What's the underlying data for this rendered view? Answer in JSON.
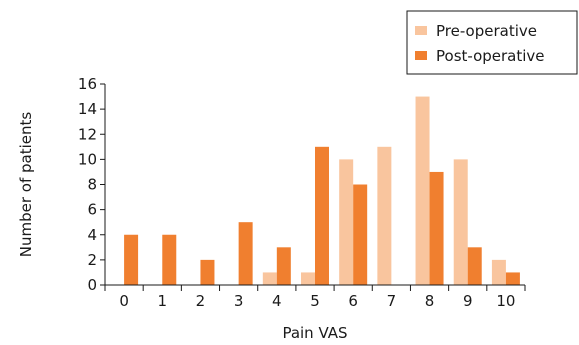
{
  "chart_data": {
    "type": "bar",
    "categories": [
      "0",
      "1",
      "2",
      "3",
      "4",
      "5",
      "6",
      "7",
      "8",
      "9",
      "10"
    ],
    "series": [
      {
        "name": "Pre-operative",
        "color": "#f9c59e",
        "values": [
          0,
          0,
          0,
          0,
          1,
          1,
          10,
          11,
          15,
          10,
          2
        ]
      },
      {
        "name": "Post-operative",
        "color": "#f07f2f",
        "values": [
          4,
          4,
          2,
          5,
          3,
          11,
          8,
          0,
          9,
          3,
          1
        ]
      }
    ],
    "title": "",
    "xlabel": "Pain VAS",
    "ylabel": "Number of patients",
    "ylim": [
      0,
      16
    ],
    "yticks": [
      0,
      2,
      4,
      6,
      8,
      10,
      12,
      14,
      16
    ],
    "grid": false,
    "legend_position": "top-right"
  }
}
